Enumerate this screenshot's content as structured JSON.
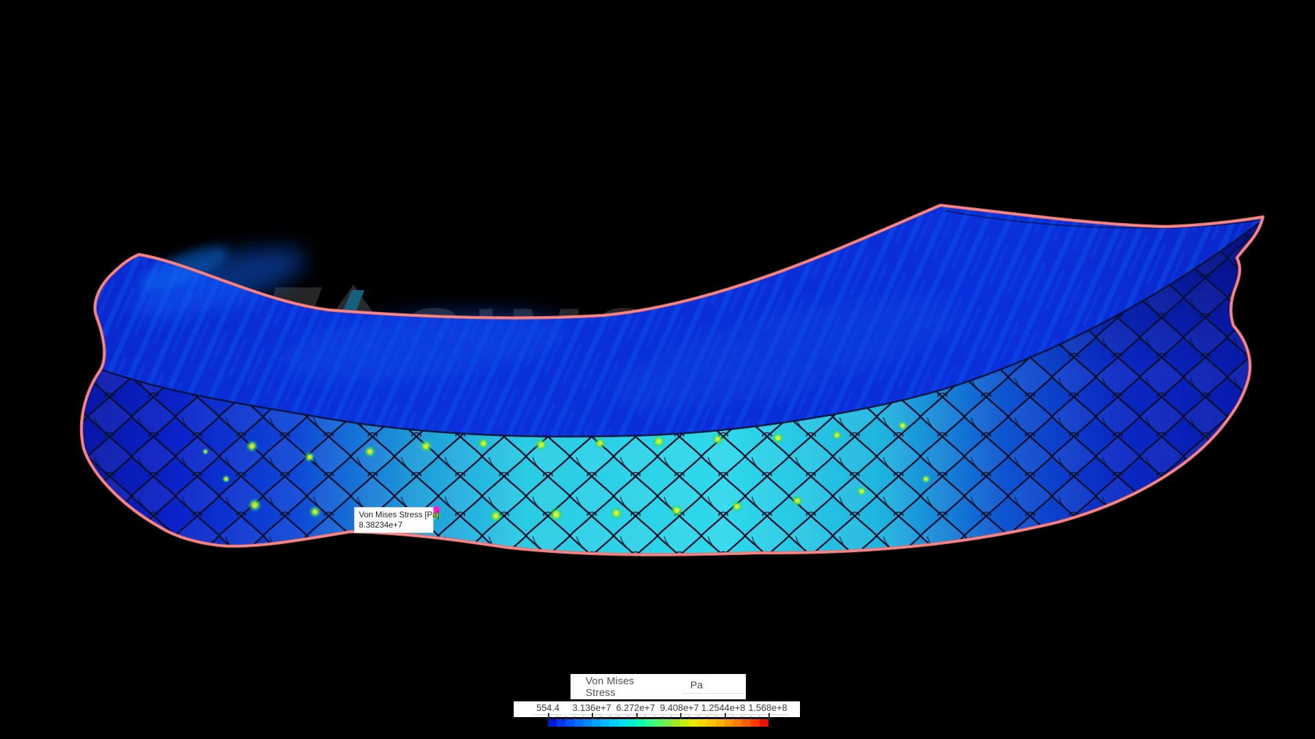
{
  "viewport": {
    "watermark": "SIMSCALE"
  },
  "tooltip": {
    "label": "Von Mises Stress [Pa]",
    "value": "8.38234e+7"
  },
  "legend": {
    "title": "Von Mises Stress",
    "unit": "Pa",
    "tick_labels": [
      "554.4",
      "3.136e+7",
      "6.272e+7",
      "9.408e+7",
      "1.2544e+8",
      "1.568e+8"
    ],
    "colorbar_colors": [
      "#0018d8",
      "#0038f0",
      "#0055ff",
      "#0070ff",
      "#008cff",
      "#00a4ff",
      "#00baff",
      "#00cef8",
      "#00e0ea",
      "#00ecd0",
      "#10f8b0",
      "#30fc8c",
      "#50f868",
      "#78ec48",
      "#a0e828",
      "#c8ec10",
      "#e8e800",
      "#f8d800",
      "#ffc400",
      "#ffae00",
      "#ff9600",
      "#ff7c00",
      "#ff5f00",
      "#ff3c00",
      "#f01000"
    ]
  },
  "colors": {
    "background": "#000000",
    "outline": "#ed6f6f",
    "outline_highlight": "#f7a3a3",
    "probe_dot": "#ff1ecb",
    "surface_blue": "#0a2cd4",
    "lattice_cyan": "#2ed8ea"
  },
  "chart_data": {
    "type": "heatmap",
    "title": "Von Mises Stress",
    "unit": "Pa",
    "scale_min": 554.4,
    "scale_max": 156800000,
    "scale_ticks": [
      554.4,
      31360000,
      62720000,
      94080000,
      125440000,
      156800000
    ],
    "probe_value": 83823400
  }
}
